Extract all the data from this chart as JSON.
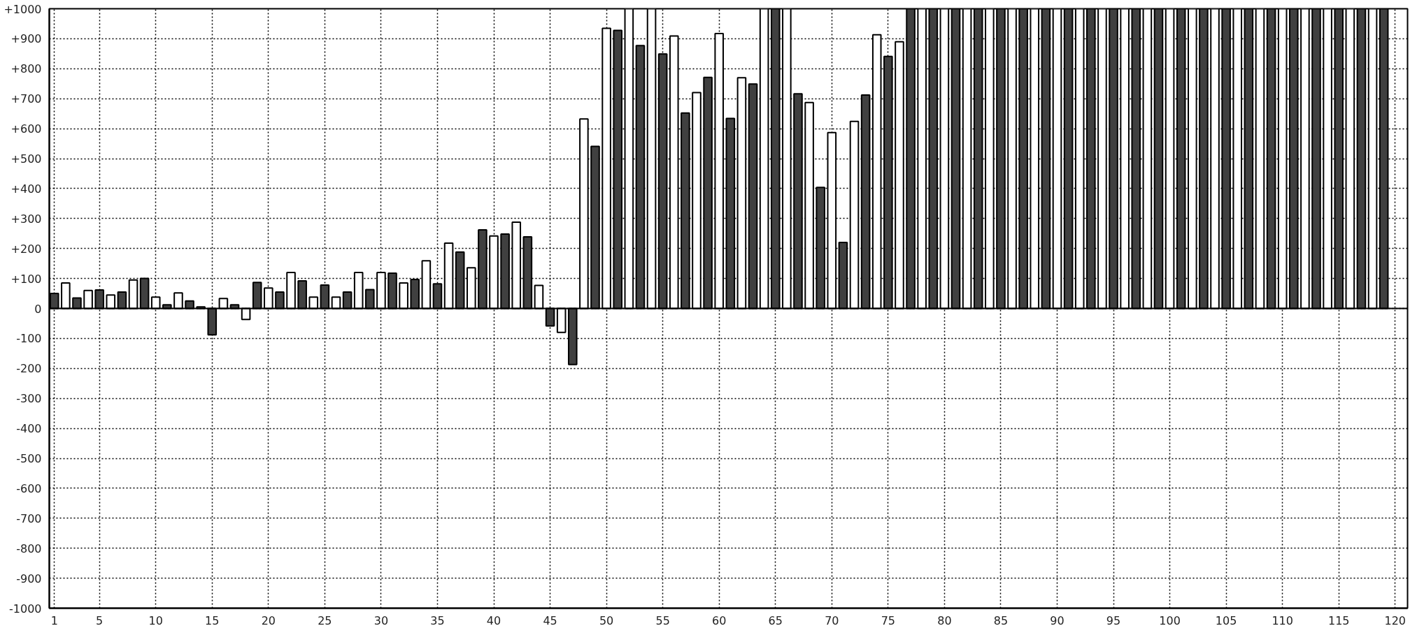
{
  "chart_data": {
    "type": "bar",
    "xlim": [
      0.55,
      121.1
    ],
    "xticks": [
      1,
      5,
      10,
      15,
      20,
      25,
      30,
      35,
      40,
      45,
      50,
      55,
      60,
      65,
      70,
      75,
      80,
      85,
      90,
      95,
      100,
      105,
      110,
      115,
      120
    ],
    "ylim": [
      -1000,
      1000
    ],
    "yticks": [
      {
        "value": -1000,
        "label": "-1000"
      },
      {
        "value": -900,
        "label": "-900"
      },
      {
        "value": -800,
        "label": "-800"
      },
      {
        "value": -700,
        "label": "-700"
      },
      {
        "value": -600,
        "label": "-600"
      },
      {
        "value": -500,
        "label": "-500"
      },
      {
        "value": -400,
        "label": "-400"
      },
      {
        "value": -300,
        "label": "-300"
      },
      {
        "value": -200,
        "label": "-200"
      },
      {
        "value": -100,
        "label": "-100"
      },
      0,
      {
        "value": 100,
        "label": "+100"
      },
      {
        "value": 200,
        "label": "+200"
      },
      {
        "value": 300,
        "label": "+300"
      },
      {
        "value": 400,
        "label": "+400"
      },
      {
        "value": 500,
        "label": "+500"
      },
      {
        "value": 600,
        "label": "+600"
      },
      {
        "value": 700,
        "label": "+700"
      },
      {
        "value": 800,
        "label": "+800"
      },
      {
        "value": 900,
        "label": "+900"
      },
      {
        "value": 1000,
        "label": "+1000"
      }
    ],
    "grid": true,
    "series": [
      {
        "color": "#404040",
        "x": [
          1,
          3,
          5,
          7,
          9,
          11,
          13,
          15,
          17,
          19,
          21,
          23,
          25,
          27,
          29,
          31,
          33,
          35,
          37,
          39,
          41,
          43,
          45,
          47,
          49,
          51,
          53,
          55,
          57,
          59,
          61,
          63,
          65,
          67,
          69,
          71,
          73,
          75,
          77,
          79,
          81,
          83,
          85,
          87,
          89,
          91,
          93,
          95,
          97,
          99,
          101,
          103,
          105,
          107,
          109,
          111,
          113,
          115,
          117,
          119
        ],
        "values": [
          50,
          35,
          62,
          55,
          100,
          12,
          25,
          -88,
          12,
          87,
          55,
          92,
          78,
          55,
          63,
          118,
          97,
          82,
          188,
          262,
          248,
          239,
          -58,
          -187,
          541,
          928,
          877,
          849,
          652,
          771,
          634,
          749,
          1000,
          716,
          404,
          220,
          712,
          841,
          1000,
          1000,
          1000,
          1000,
          1000,
          1000,
          1000,
          1000,
          1000,
          1000,
          1000,
          1000,
          1000,
          1000,
          1000,
          1000,
          1000,
          1000,
          1000,
          1000,
          1000,
          1000
        ]
      },
      {
        "color": "#ffffff",
        "x": [
          2,
          4,
          6,
          8,
          10,
          12,
          14,
          16,
          18,
          20,
          22,
          24,
          26,
          28,
          30,
          32,
          34,
          36,
          38,
          40,
          42,
          44,
          46,
          48,
          50,
          52,
          54,
          56,
          58,
          60,
          62,
          64,
          66,
          68,
          70,
          72,
          74,
          76,
          78,
          80,
          82,
          84,
          86,
          88,
          90,
          92,
          94,
          96,
          98,
          100,
          102,
          104,
          106,
          108,
          110,
          112,
          114,
          116,
          118
        ],
        "values": [
          85,
          60,
          45,
          95,
          38,
          52,
          5,
          33,
          -37,
          68,
          120,
          38,
          38,
          120,
          120,
          85,
          159,
          218,
          136,
          242,
          288,
          77,
          -80,
          632,
          935,
          1000,
          1000,
          909,
          720,
          917,
          770,
          1000,
          1000,
          687,
          587,
          624,
          913,
          890,
          1000,
          1000,
          1000,
          1000,
          1000,
          1000,
          1000,
          1000,
          1000,
          1000,
          1000,
          1000,
          1000,
          1000,
          1000,
          1000,
          1000,
          1000,
          1000,
          1000,
          1000
        ]
      }
    ]
  }
}
